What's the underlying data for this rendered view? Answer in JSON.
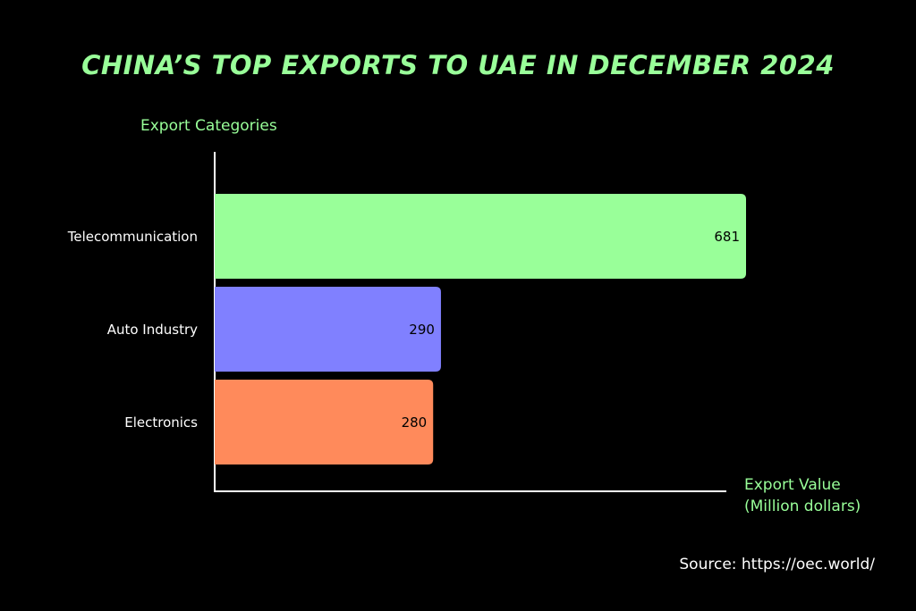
{
  "chart_data": {
    "type": "bar",
    "orientation": "horizontal",
    "title": "CHINA’S TOP EXPORTS TO UAE IN DECEMBER 2024",
    "y_label": "Export Categories",
    "x_label": "Export Value (Million dollars)",
    "categories": [
      "Telecommunication",
      "Auto Industry",
      "Electronics"
    ],
    "values": [
      681,
      290,
      280
    ],
    "colors": [
      "#99ff99",
      "#8080ff",
      "#ff8a5b"
    ],
    "source": "Source: https://oec.world/"
  }
}
